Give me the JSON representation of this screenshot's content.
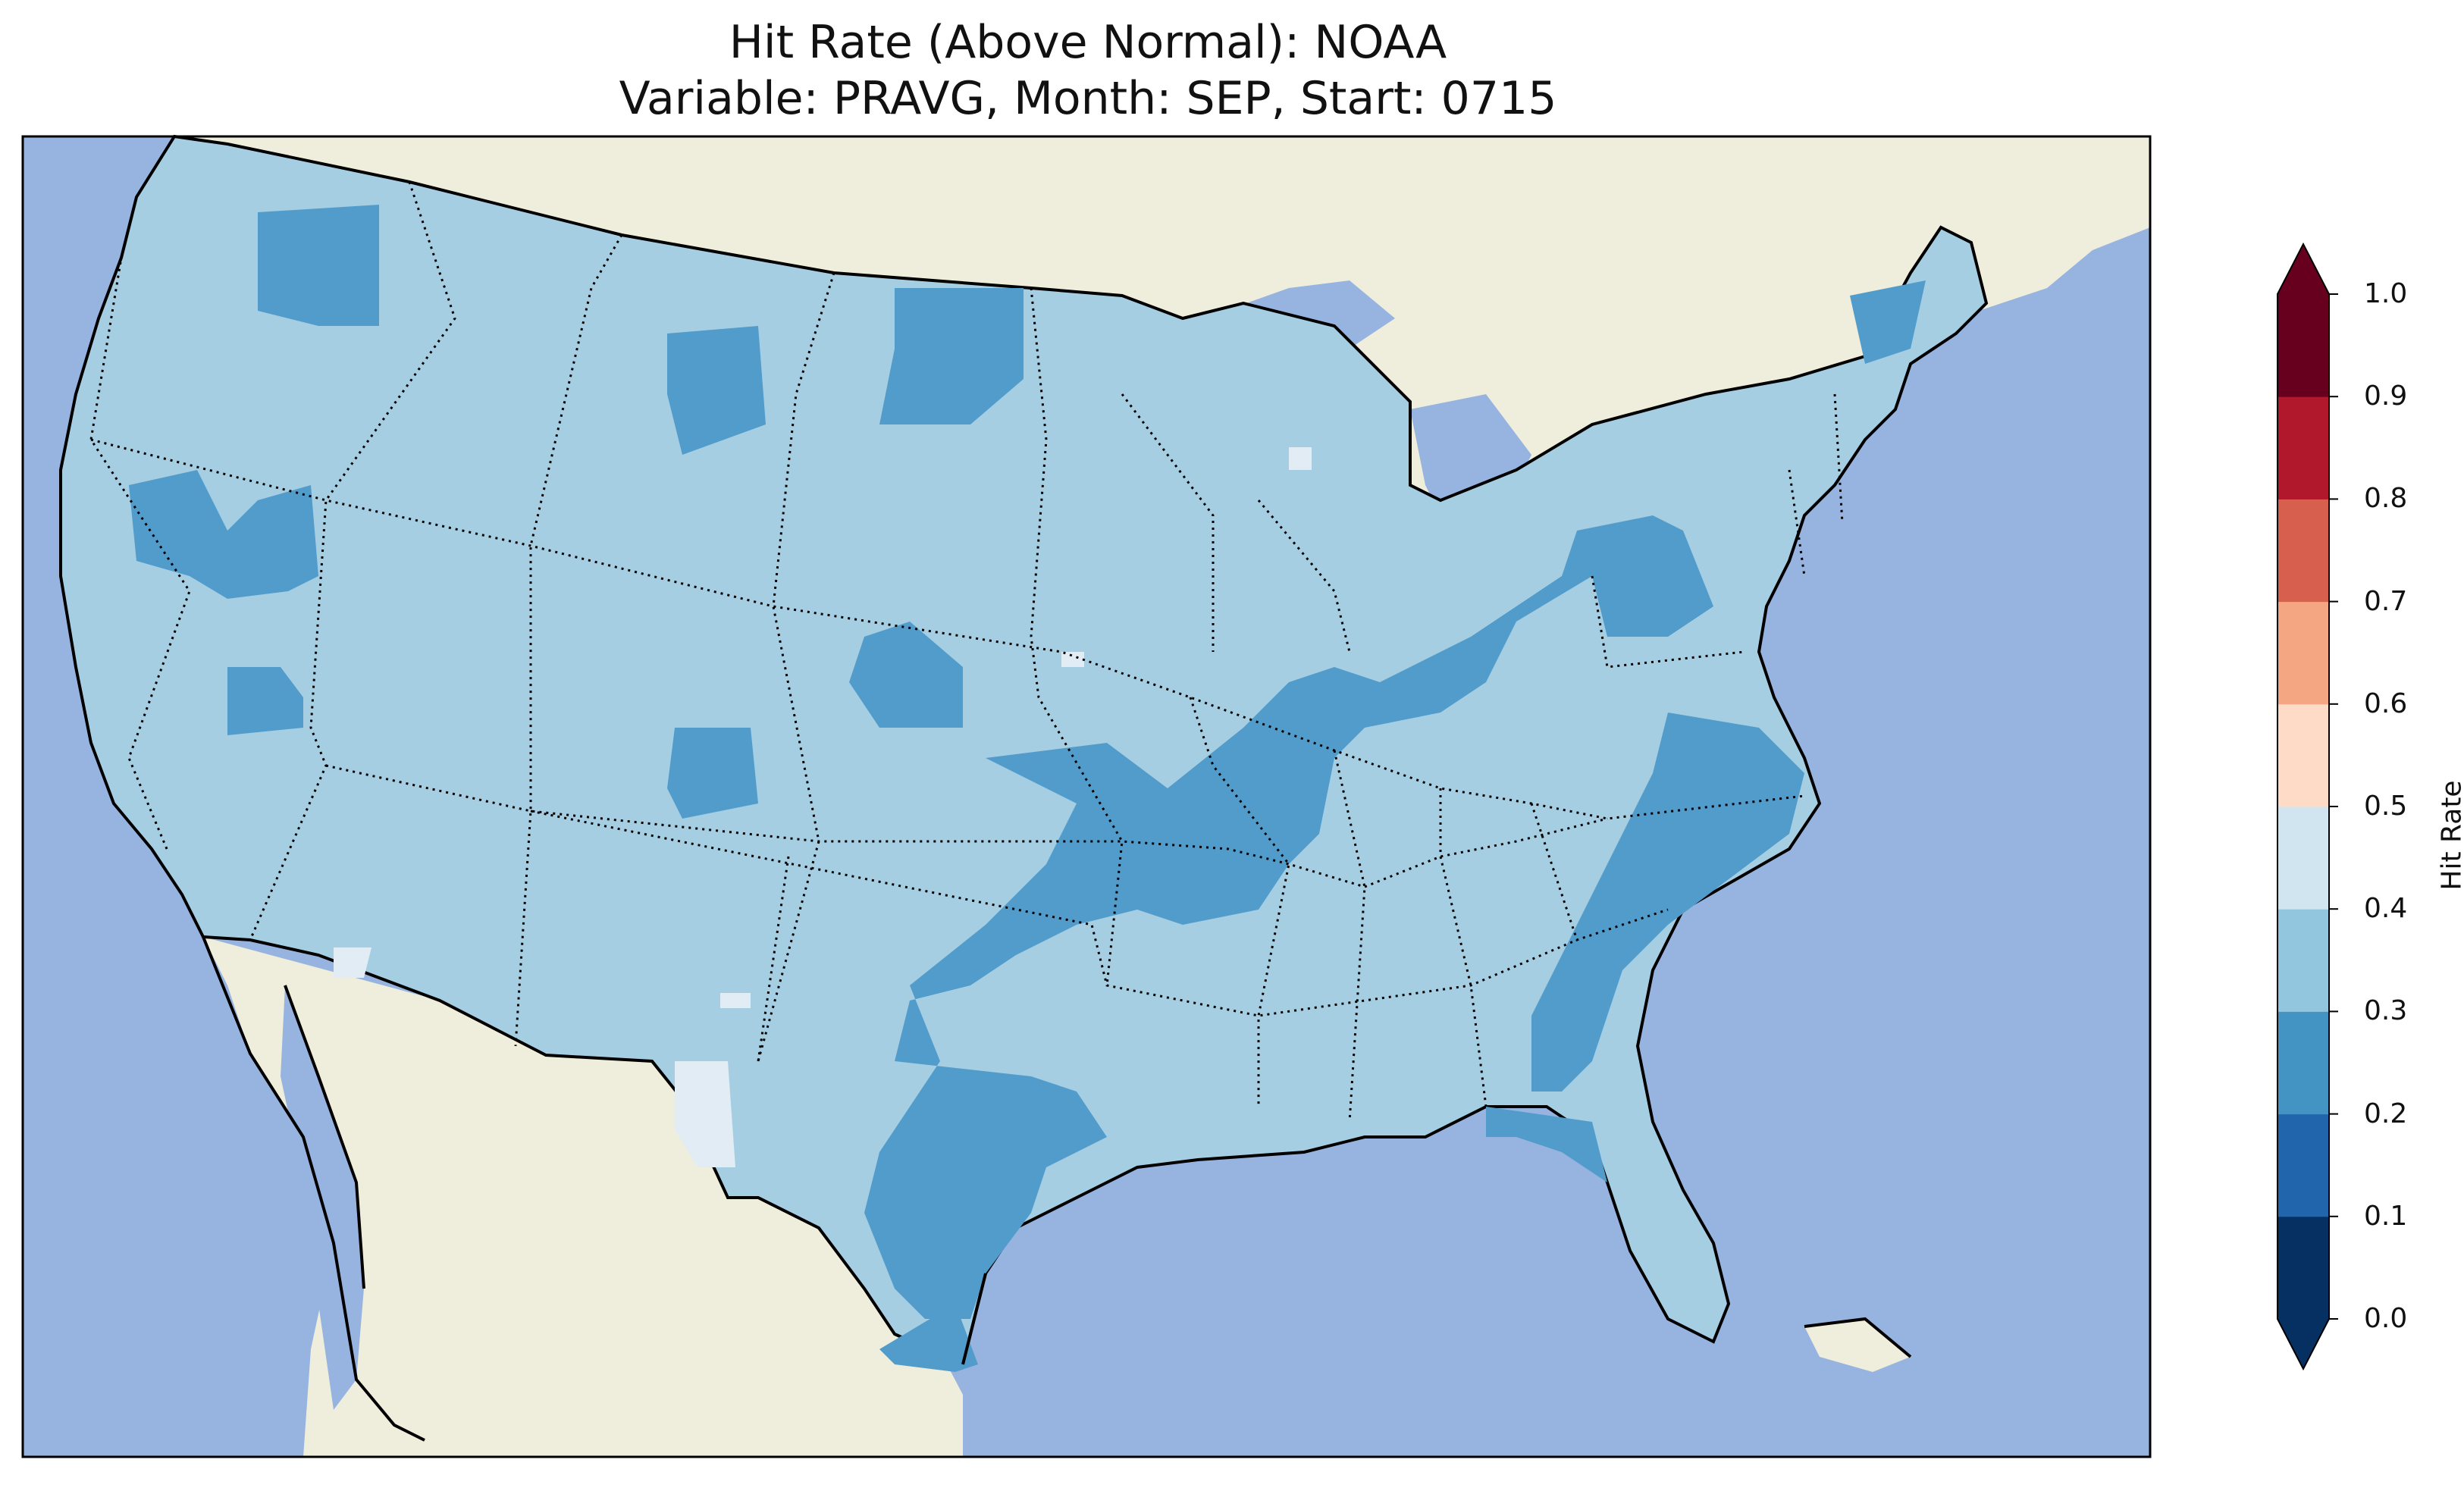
{
  "title": {
    "line1": "Hit Rate (Above Normal): NOAA",
    "line2": "Variable: PRAVG, Month: SEP, Start: 0715"
  },
  "colors": {
    "ocean": "#97b4e0",
    "land": "#efeedc",
    "fill_03_04": "#a6cee3",
    "fill_02_03": "#529ccb",
    "fill_04_05": "#e2ecf4",
    "colorbar": [
      "#053061",
      "#2166ac",
      "#4393c3",
      "#92c5de",
      "#d1e5f0",
      "#fddbc7",
      "#f4a582",
      "#d6604d",
      "#b2182b",
      "#67001f"
    ]
  },
  "colorbar": {
    "label": "Hit Rate",
    "ticks": [
      "0.0",
      "0.1",
      "0.2",
      "0.3",
      "0.4",
      "0.5",
      "0.6",
      "0.7",
      "0.8",
      "0.9",
      "1.0"
    ],
    "extend": "both"
  },
  "map": {
    "region": "Contiguous United States",
    "dominant_hit_rate_bin": "0.3–0.4",
    "features": [
      "state borders (dotted)",
      "coastlines",
      "lakes",
      "Great Lakes"
    ]
  }
}
